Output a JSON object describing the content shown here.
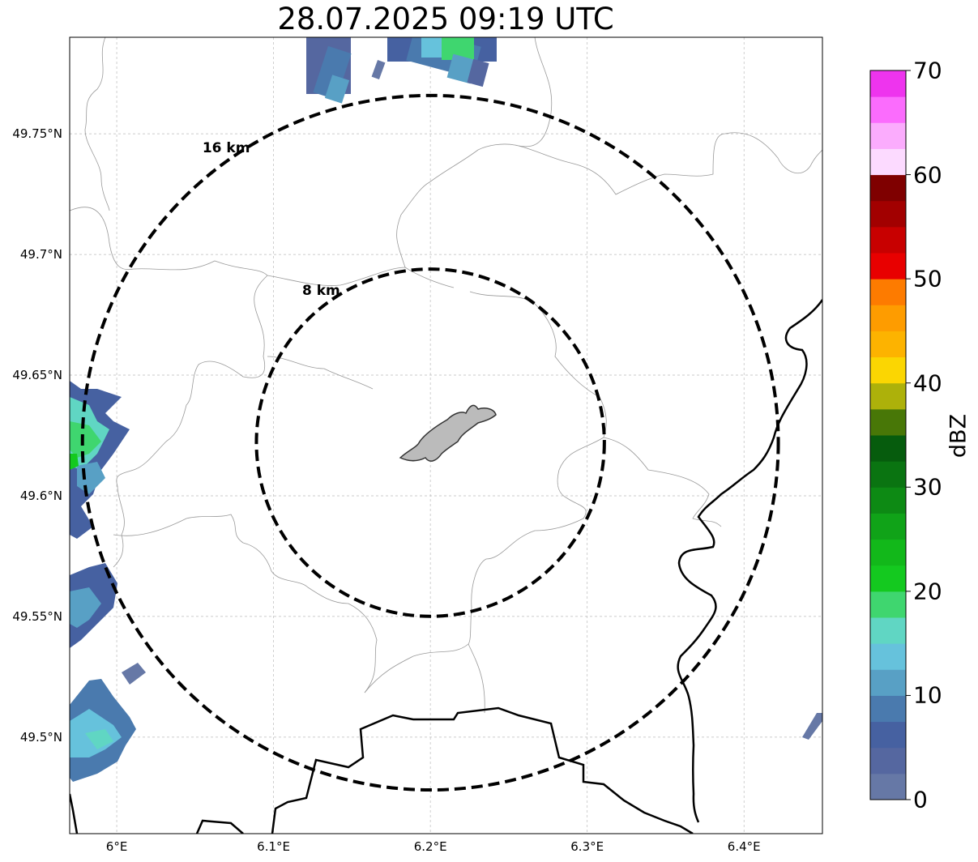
{
  "title": "28.07.2025 09:19 UTC",
  "map": {
    "lat_ticks": [
      {
        "value": 49.75,
        "label": "49.75°N"
      },
      {
        "value": 49.7,
        "label": "49.7°N"
      },
      {
        "value": 49.65,
        "label": "49.65°N"
      },
      {
        "value": 49.6,
        "label": "49.6°N"
      },
      {
        "value": 49.55,
        "label": "49.55°N"
      },
      {
        "value": 49.5,
        "label": "49.5°N"
      }
    ],
    "lon_ticks": [
      {
        "value": 6.0,
        "label": "6°E"
      },
      {
        "value": 6.1,
        "label": "6.1°E"
      },
      {
        "value": 6.2,
        "label": "6.2°E"
      },
      {
        "value": 6.3,
        "label": "6.3°E"
      },
      {
        "value": 6.4,
        "label": "6.4°E"
      }
    ],
    "extent": {
      "lon_min": 5.97,
      "lon_max": 6.45,
      "lat_min": 49.46,
      "lat_max": 49.79
    },
    "center": {
      "lon": 6.2,
      "lat": 49.622
    },
    "range_rings": [
      {
        "radius_km": 8,
        "label": "8 km"
      },
      {
        "radius_km": 16,
        "label": "16 km"
      }
    ],
    "gridlines": true
  },
  "colorbar": {
    "label": "dBZ",
    "min": 0,
    "max": 70,
    "ticks": [
      "0",
      "10",
      "20",
      "30",
      "40",
      "50",
      "60",
      "70"
    ],
    "colors": [
      "#6678a6",
      "#5567a0",
      "#4661a1",
      "#4a7aae",
      "#58a0c5",
      "#66c2dc",
      "#60d6c3",
      "#3fd66f",
      "#14c91f",
      "#12b81a",
      "#10a318",
      "#0d8a14",
      "#0a7411",
      "#065c0d",
      "#487707",
      "#adb10a",
      "#fbd602",
      "#fdb300",
      "#fe9c00",
      "#fd7b00",
      "#e80000",
      "#c80000",
      "#a20000",
      "#7f0000",
      "#fcdaff",
      "#fbacfd",
      "#fb6cfd",
      "#ee34ee"
    ]
  }
}
